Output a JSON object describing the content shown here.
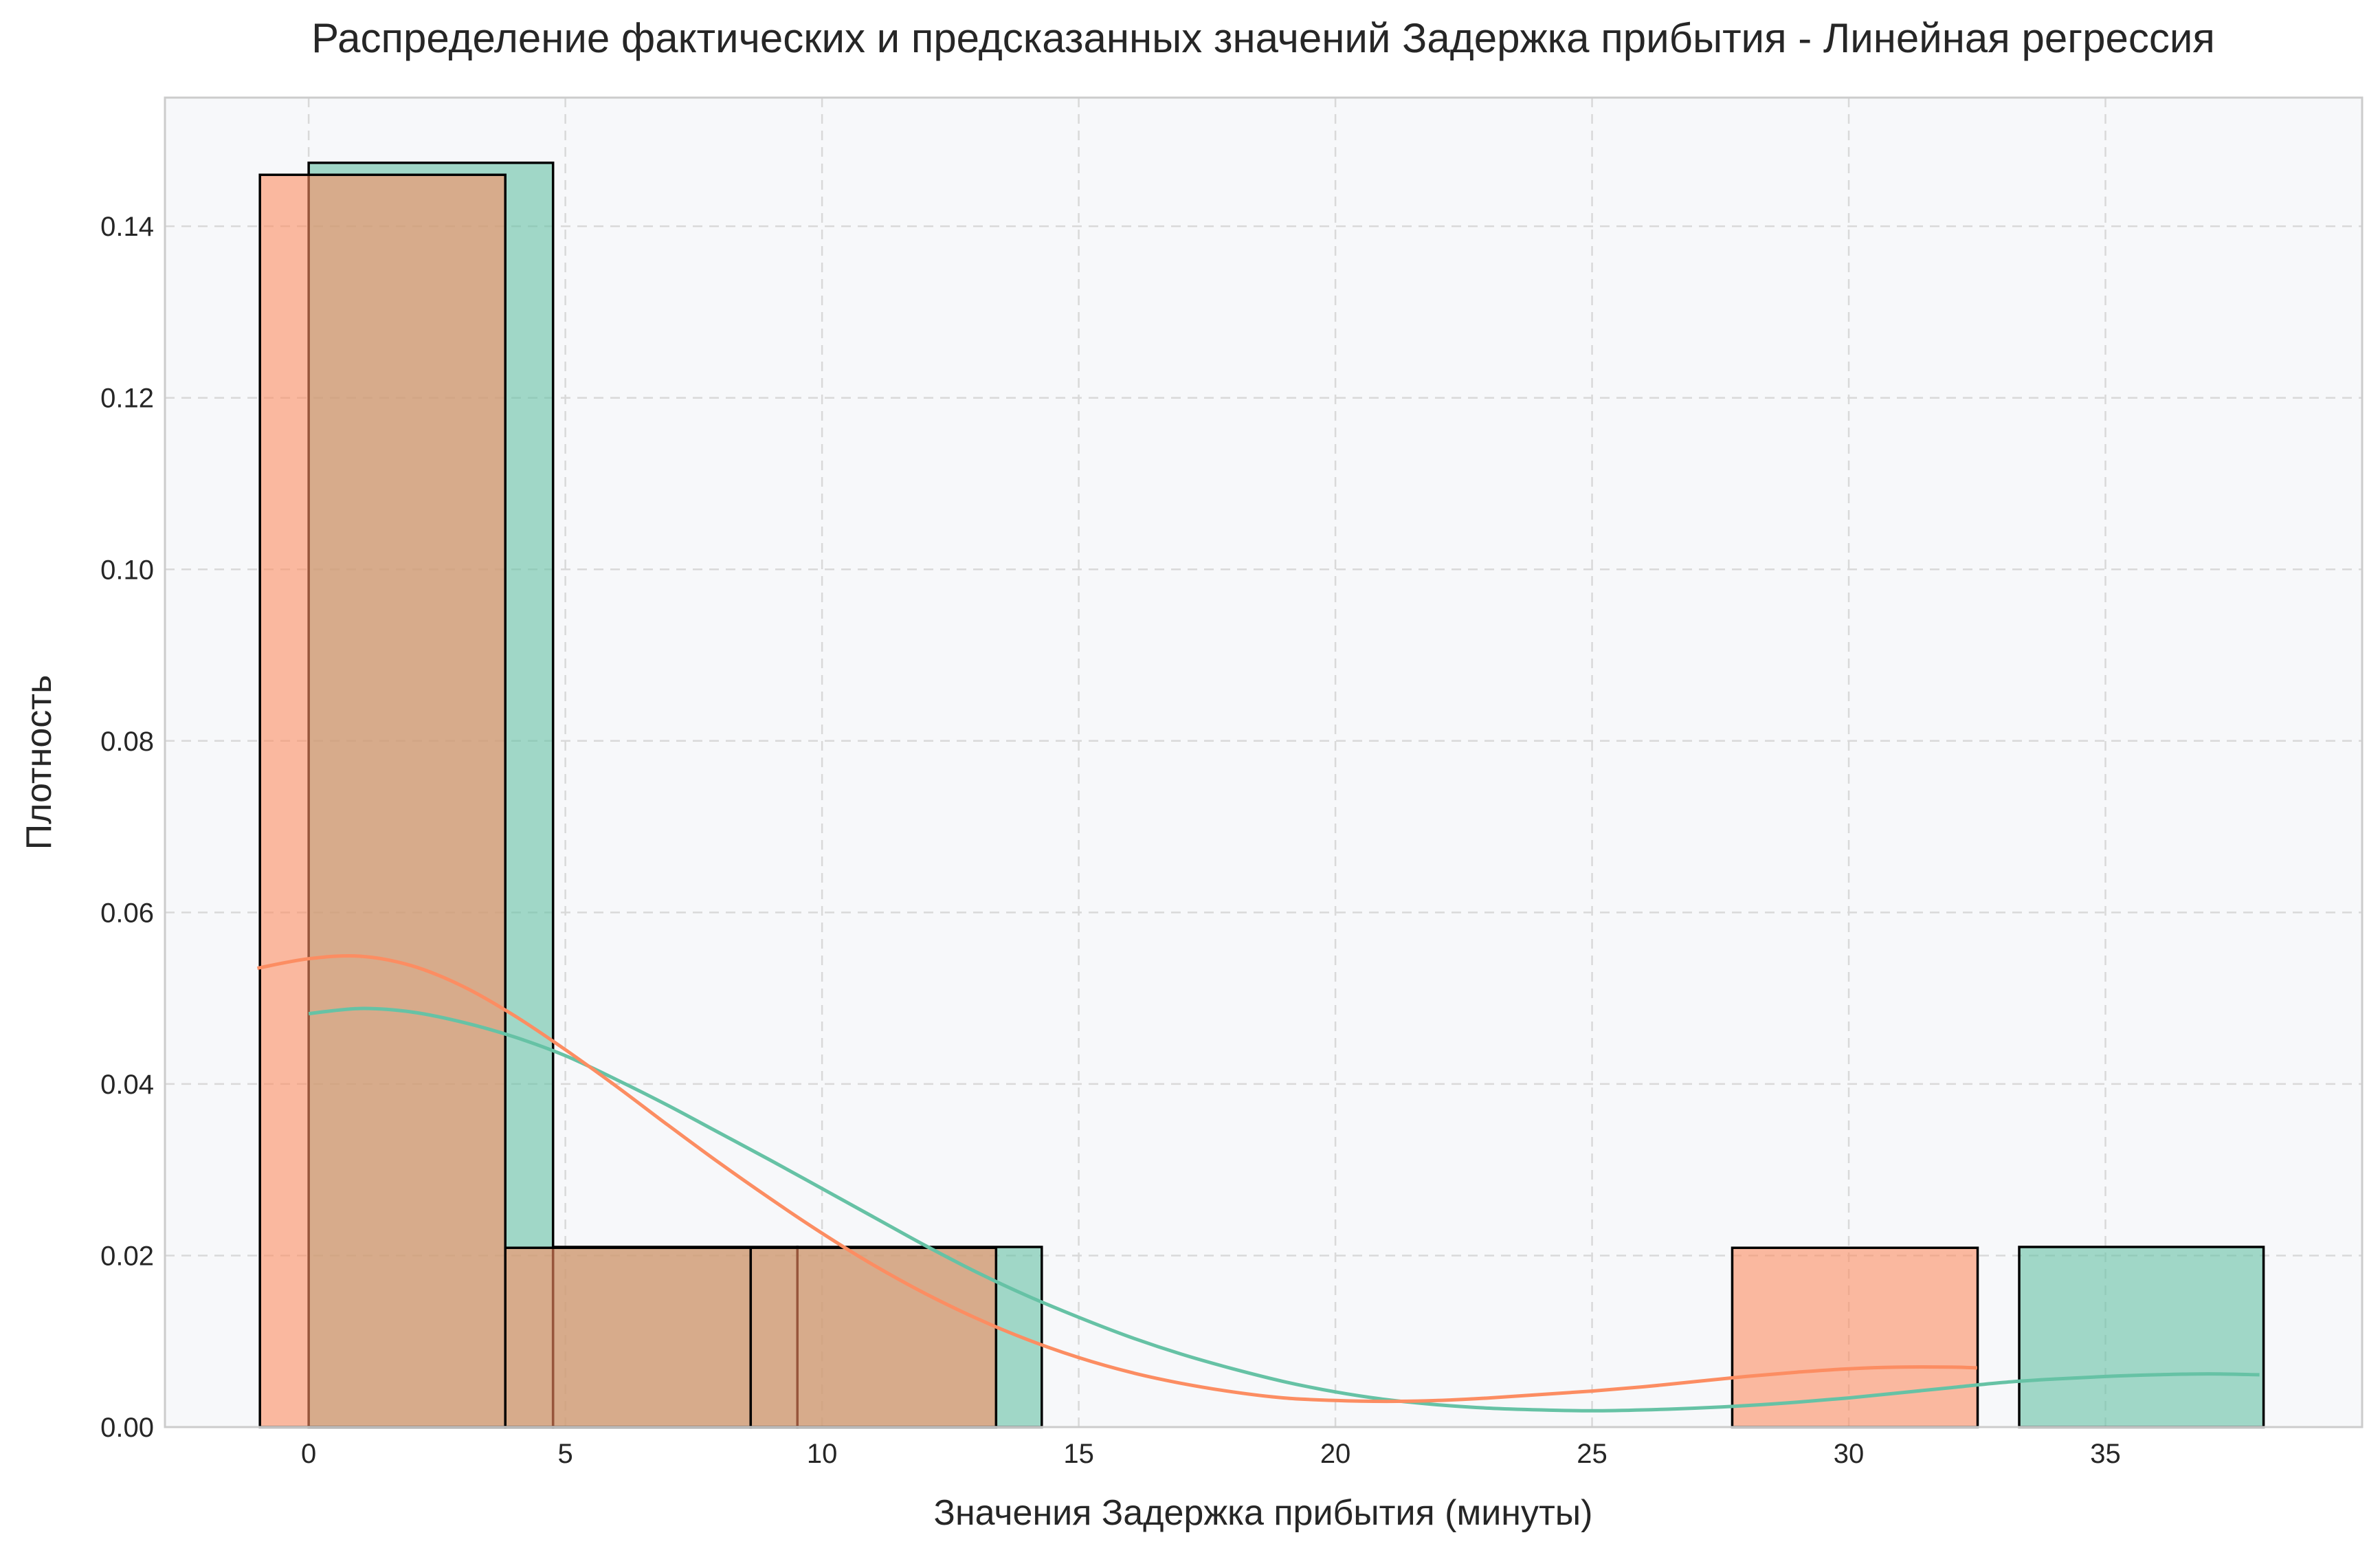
{
  "chart_data": {
    "type": "histogram",
    "title": "Распределение фактических и предсказанных значений Задержка прибытия - Линейная регрессия",
    "xlabel": "Значения Задержка прибытия (минуты)",
    "ylabel": "Плотность",
    "xlim": [
      -2.8,
      40.0
    ],
    "ylim": [
      0,
      0.155
    ],
    "xticks": [
      "0",
      "5",
      "10",
      "15",
      "20",
      "25",
      "30",
      "35"
    ],
    "xtick_values": [
      0,
      5,
      10,
      15,
      20,
      25,
      30,
      35
    ],
    "yticks": [
      "0.00",
      "0.02",
      "0.04",
      "0.06",
      "0.08",
      "0.10",
      "0.12",
      "0.14"
    ],
    "ytick_values": [
      0,
      0.02,
      0.04,
      0.06,
      0.08,
      0.1,
      0.12,
      0.14
    ],
    "grid": true,
    "legend": "none",
    "colors": {
      "actual": "#66c2a5",
      "predicted": "#fc8d62",
      "plot_background": "#f7f8fa",
      "grid": "#d9d9d9",
      "bar_edge": "#000000"
    },
    "series": [
      {
        "role": "actual",
        "bins": [
          {
            "x0": 0.0,
            "x1": 4.76,
            "density": 0.1474
          },
          {
            "x0": 4.76,
            "x1": 9.52,
            "density": 0.021
          },
          {
            "x0": 9.52,
            "x1": 14.28,
            "density": 0.021
          },
          {
            "x0": 14.28,
            "x1": 19.04,
            "density": 0.0
          },
          {
            "x0": 19.04,
            "x1": 23.8,
            "density": 0.0
          },
          {
            "x0": 23.8,
            "x1": 28.56,
            "density": 0.0
          },
          {
            "x0": 28.56,
            "x1": 33.32,
            "density": 0.0
          },
          {
            "x0": 33.32,
            "x1": 38.08,
            "density": 0.021
          }
        ],
        "kde": {
          "x": [
            0,
            1,
            2,
            3,
            4,
            5,
            6,
            7,
            8,
            9,
            10,
            11,
            12,
            13,
            14,
            15,
            16,
            17,
            18,
            19,
            20,
            21,
            22,
            23,
            24,
            25,
            26,
            27,
            28,
            29,
            30,
            31,
            32,
            33,
            34,
            35,
            36,
            37,
            38
          ],
          "y": [
            0.0482,
            0.0488,
            0.0484,
            0.0472,
            0.0455,
            0.0433,
            0.0405,
            0.0375,
            0.0343,
            0.0311,
            0.0278,
            0.0245,
            0.0212,
            0.0181,
            0.0153,
            0.0128,
            0.0105,
            0.0085,
            0.0068,
            0.0053,
            0.0041,
            0.0032,
            0.0026,
            0.0022,
            0.002,
            0.0019,
            0.002,
            0.0022,
            0.0025,
            0.0029,
            0.0034,
            0.004,
            0.0046,
            0.0052,
            0.0056,
            0.0059,
            0.0061,
            0.0062,
            0.0061
          ]
        }
      },
      {
        "role": "predicted",
        "bins": [
          {
            "x0": -0.95,
            "x1": 3.83,
            "density": 0.146
          },
          {
            "x0": 3.83,
            "x1": 8.61,
            "density": 0.0209
          },
          {
            "x0": 8.61,
            "x1": 13.39,
            "density": 0.0209
          },
          {
            "x0": 13.39,
            "x1": 18.17,
            "density": 0.0
          },
          {
            "x0": 18.17,
            "x1": 22.95,
            "density": 0.0
          },
          {
            "x0": 22.95,
            "x1": 27.73,
            "density": 0.0
          },
          {
            "x0": 27.73,
            "x1": 32.51,
            "density": 0.0209
          }
        ],
        "kde": {
          "x": [
            -1,
            0,
            1,
            2,
            3,
            4,
            5,
            6,
            7,
            8,
            9,
            10,
            11,
            12,
            13,
            14,
            15,
            16,
            17,
            18,
            19,
            20,
            21,
            22,
            23,
            24,
            25,
            26,
            27,
            28,
            29,
            30,
            31,
            32,
            32.5
          ],
          "y": [
            0.0535,
            0.0546,
            0.0549,
            0.0538,
            0.0514,
            0.048,
            0.044,
            0.0397,
            0.0352,
            0.0308,
            0.0266,
            0.0226,
            0.0189,
            0.0156,
            0.0127,
            0.0102,
            0.0081,
            0.0064,
            0.0051,
            0.0041,
            0.0034,
            0.0031,
            0.003,
            0.0031,
            0.0034,
            0.0038,
            0.0042,
            0.0047,
            0.0053,
            0.0059,
            0.0064,
            0.0068,
            0.007,
            0.007,
            0.0069
          ]
        }
      }
    ]
  }
}
